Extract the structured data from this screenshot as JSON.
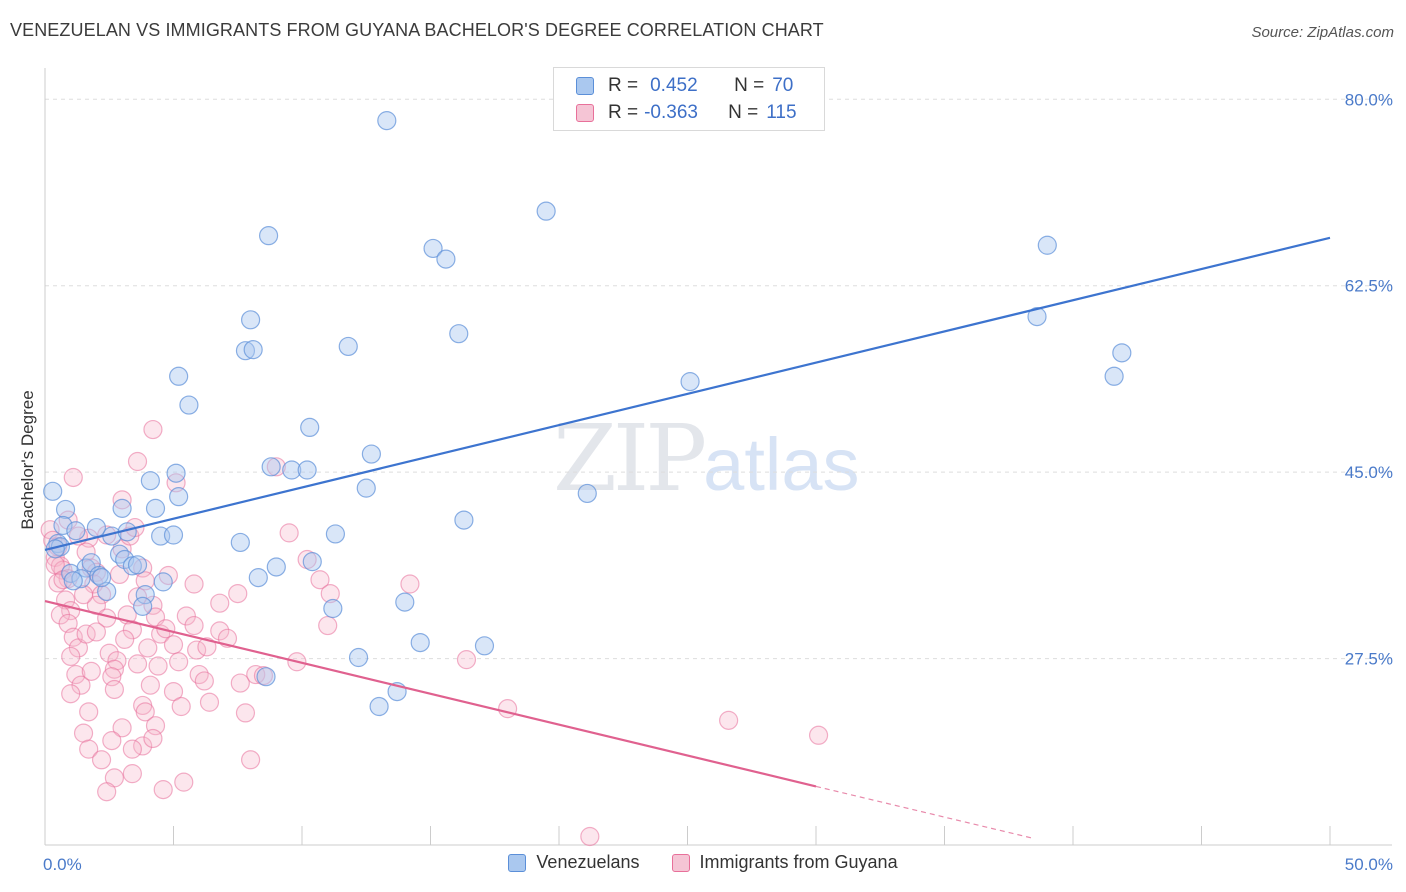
{
  "header": {
    "title": "VENEZUELAN VS IMMIGRANTS FROM GUYANA BACHELOR'S DEGREE CORRELATION CHART",
    "source": "Source: ZipAtlas.com"
  },
  "watermark": {
    "zip": "ZIP",
    "atlas": "atlas"
  },
  "legend": {
    "rows": [
      {
        "r_label": "R =",
        "r_value": "0.452",
        "n_label": "N =",
        "n_value": "70"
      },
      {
        "r_label": "R =",
        "r_value": "-0.363",
        "n_label": "N =",
        "n_value": "115"
      }
    ]
  },
  "bottom_legend": {
    "series1": "Venezuelans",
    "series2": "Immigrants from Guyana"
  },
  "colors": {
    "blue": "#5b8fd8",
    "blue_fill": "#aac8ef",
    "pink": "#e8709a",
    "pink_fill": "#f5b8cc",
    "axis_text": "#4a7ac9"
  },
  "chart_data": {
    "type": "scatter",
    "title": "VENEZUELAN VS IMMIGRANTS FROM GUYANA BACHELOR'S DEGREE CORRELATION CHART",
    "xlabel": "",
    "ylabel": "Bachelor's Degree",
    "xlim": [
      0,
      50
    ],
    "ylim": [
      10,
      82
    ],
    "x_tick_labels": [
      "0.0%",
      "50.0%"
    ],
    "y_ticks": [
      27.5,
      45.0,
      62.5,
      80.0
    ],
    "y_tick_labels": [
      "27.5%",
      "45.0%",
      "62.5%",
      "80.0%"
    ],
    "grid": true,
    "series": [
      {
        "name": "Venezuelans",
        "R": 0.452,
        "N": 70,
        "trend": {
          "x": [
            0,
            50
          ],
          "y": [
            37.7,
            67.0
          ]
        },
        "points": [
          [
            0.3,
            43.2
          ],
          [
            0.8,
            41.5
          ],
          [
            0.7,
            40.0
          ],
          [
            1.2,
            39.5
          ],
          [
            0.5,
            38.3
          ],
          [
            0.6,
            38.0
          ],
          [
            0.4,
            37.8
          ],
          [
            1.0,
            35.5
          ],
          [
            1.6,
            36.0
          ],
          [
            1.4,
            35.0
          ],
          [
            1.8,
            36.5
          ],
          [
            2.1,
            35.3
          ],
          [
            1.1,
            34.8
          ],
          [
            2.4,
            33.8
          ],
          [
            2.2,
            35.1
          ],
          [
            2.6,
            39.0
          ],
          [
            2.9,
            37.3
          ],
          [
            2.0,
            39.8
          ],
          [
            3.1,
            36.8
          ],
          [
            3.4,
            36.2
          ],
          [
            3.6,
            36.3
          ],
          [
            3.9,
            33.5
          ],
          [
            3.2,
            39.4
          ],
          [
            3.0,
            41.6
          ],
          [
            4.1,
            44.2
          ],
          [
            4.3,
            41.6
          ],
          [
            4.5,
            39.0
          ],
          [
            4.6,
            34.7
          ],
          [
            3.8,
            32.4
          ],
          [
            5.0,
            39.1
          ],
          [
            5.2,
            42.7
          ],
          [
            5.1,
            44.9
          ],
          [
            5.6,
            51.3
          ],
          [
            5.2,
            54.0
          ],
          [
            7.6,
            38.4
          ],
          [
            7.8,
            56.4
          ],
          [
            8.1,
            56.5
          ],
          [
            8.0,
            59.3
          ],
          [
            8.8,
            45.5
          ],
          [
            8.3,
            35.1
          ],
          [
            9.0,
            36.1
          ],
          [
            9.6,
            45.2
          ],
          [
            8.6,
            25.8
          ],
          [
            10.3,
            49.2
          ],
          [
            10.4,
            36.6
          ],
          [
            11.2,
            32.2
          ],
          [
            11.3,
            39.2
          ],
          [
            11.8,
            56.8
          ],
          [
            12.2,
            27.6
          ],
          [
            12.5,
            43.5
          ],
          [
            12.7,
            46.7
          ],
          [
            13.0,
            23.0
          ],
          [
            13.7,
            24.4
          ],
          [
            14.0,
            32.8
          ],
          [
            14.6,
            29.0
          ],
          [
            15.1,
            66.0
          ],
          [
            15.6,
            65.0
          ],
          [
            16.1,
            58.0
          ],
          [
            16.3,
            40.5
          ],
          [
            17.1,
            28.7
          ],
          [
            13.3,
            78.0
          ],
          [
            19.5,
            69.5
          ],
          [
            21.1,
            43.0
          ],
          [
            25.1,
            53.5
          ],
          [
            38.6,
            59.6
          ],
          [
            39.0,
            66.3
          ],
          [
            41.6,
            54.0
          ],
          [
            41.9,
            56.2
          ],
          [
            8.7,
            67.2
          ],
          [
            10.2,
            45.2
          ]
        ]
      },
      {
        "name": "Immigrants from Guyana",
        "R": -0.363,
        "N": 115,
        "trend_solid": {
          "x": [
            0,
            30
          ],
          "y": [
            32.9,
            15.5
          ]
        },
        "trend_dashed": {
          "x": [
            30,
            38.5
          ],
          "y": [
            15.5,
            10.6
          ]
        },
        "points": [
          [
            0.2,
            39.6
          ],
          [
            0.3,
            38.6
          ],
          [
            0.5,
            38.0
          ],
          [
            0.4,
            37.0
          ],
          [
            0.6,
            36.2
          ],
          [
            0.7,
            35.8
          ],
          [
            0.9,
            35.0
          ],
          [
            0.5,
            34.6
          ],
          [
            0.8,
            33.0
          ],
          [
            1.0,
            32.0
          ],
          [
            0.6,
            31.6
          ],
          [
            0.9,
            30.8
          ],
          [
            1.1,
            29.5
          ],
          [
            1.3,
            28.5
          ],
          [
            1.0,
            27.7
          ],
          [
            1.2,
            26.0
          ],
          [
            1.4,
            25.0
          ],
          [
            1.0,
            24.2
          ],
          [
            1.7,
            38.8
          ],
          [
            1.6,
            37.5
          ],
          [
            1.8,
            36.0
          ],
          [
            2.0,
            35.6
          ],
          [
            1.9,
            34.5
          ],
          [
            2.2,
            33.5
          ],
          [
            2.0,
            32.5
          ],
          [
            2.4,
            31.3
          ],
          [
            1.6,
            29.8
          ],
          [
            2.0,
            30.0
          ],
          [
            2.5,
            28.0
          ],
          [
            1.8,
            26.3
          ],
          [
            2.8,
            27.3
          ],
          [
            2.7,
            26.5
          ],
          [
            2.6,
            25.8
          ],
          [
            2.7,
            24.6
          ],
          [
            1.7,
            22.5
          ],
          [
            1.5,
            20.5
          ],
          [
            1.7,
            19.0
          ],
          [
            2.2,
            18.0
          ],
          [
            3.0,
            21.0
          ],
          [
            2.6,
            19.8
          ],
          [
            2.7,
            16.3
          ],
          [
            2.4,
            15.0
          ],
          [
            3.4,
            16.7
          ],
          [
            3.0,
            37.8
          ],
          [
            3.3,
            39.0
          ],
          [
            3.5,
            39.8
          ],
          [
            3.8,
            36.0
          ],
          [
            3.6,
            33.3
          ],
          [
            3.9,
            34.8
          ],
          [
            3.2,
            31.6
          ],
          [
            3.4,
            30.2
          ],
          [
            3.1,
            29.3
          ],
          [
            3.6,
            27.0
          ],
          [
            4.0,
            28.5
          ],
          [
            4.2,
            32.5
          ],
          [
            4.3,
            31.4
          ],
          [
            4.5,
            29.8
          ],
          [
            4.7,
            30.3
          ],
          [
            4.4,
            26.8
          ],
          [
            4.1,
            25.0
          ],
          [
            3.8,
            23.1
          ],
          [
            3.9,
            22.5
          ],
          [
            4.3,
            21.2
          ],
          [
            3.8,
            19.3
          ],
          [
            4.2,
            20.0
          ],
          [
            3.4,
            19.0
          ],
          [
            5.0,
            28.8
          ],
          [
            5.2,
            27.2
          ],
          [
            5.0,
            24.4
          ],
          [
            5.3,
            23.0
          ],
          [
            5.5,
            31.5
          ],
          [
            5.8,
            30.6
          ],
          [
            5.9,
            28.3
          ],
          [
            6.0,
            26.0
          ],
          [
            6.2,
            25.4
          ],
          [
            6.4,
            23.4
          ],
          [
            6.8,
            30.1
          ],
          [
            6.3,
            28.6
          ],
          [
            7.1,
            29.4
          ],
          [
            7.5,
            33.6
          ],
          [
            7.6,
            25.2
          ],
          [
            7.8,
            22.4
          ],
          [
            8.2,
            26.0
          ],
          [
            8.5,
            25.9
          ],
          [
            8.0,
            18.0
          ],
          [
            9.0,
            45.5
          ],
          [
            9.5,
            39.3
          ],
          [
            10.2,
            36.8
          ],
          [
            10.7,
            34.9
          ],
          [
            11.1,
            33.6
          ],
          [
            11.0,
            30.6
          ],
          [
            9.8,
            27.2
          ],
          [
            5.4,
            15.9
          ],
          [
            4.6,
            15.2
          ],
          [
            5.8,
            34.5
          ],
          [
            6.8,
            32.7
          ],
          [
            5.1,
            44.0
          ],
          [
            4.2,
            49.0
          ],
          [
            3.6,
            46.0
          ],
          [
            3.0,
            42.4
          ],
          [
            2.4,
            39.1
          ],
          [
            1.1,
            44.5
          ],
          [
            0.9,
            40.5
          ],
          [
            1.3,
            39.0
          ],
          [
            14.2,
            34.5
          ],
          [
            16.4,
            27.4
          ],
          [
            18.0,
            22.8
          ],
          [
            21.2,
            10.8
          ],
          [
            26.6,
            21.7
          ],
          [
            30.1,
            20.3
          ],
          [
            0.4,
            36.3
          ],
          [
            0.7,
            34.9
          ],
          [
            1.5,
            33.5
          ],
          [
            2.9,
            35.4
          ],
          [
            4.8,
            35.3
          ]
        ]
      }
    ]
  }
}
